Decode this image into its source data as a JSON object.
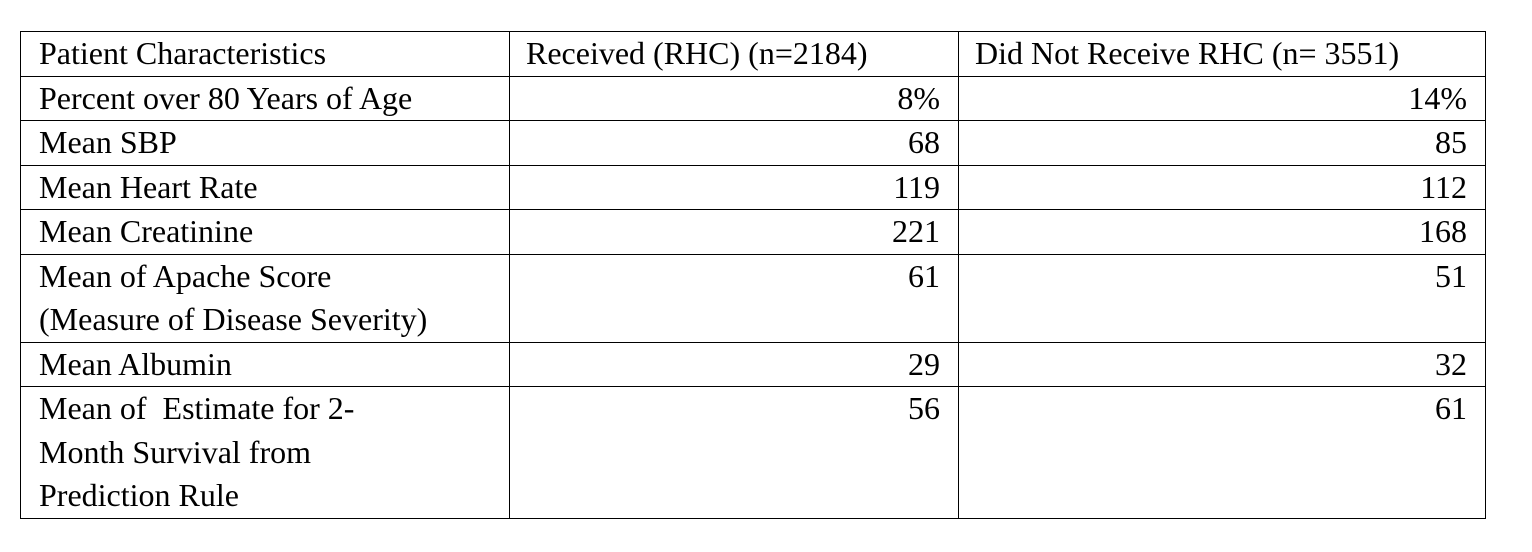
{
  "table": {
    "headers": [
      "Patient Characteristics",
      "Received (RHC) (n=2184)",
      "Did Not Receive RHC (n= 3551)"
    ],
    "rows": [
      {
        "characteristic": "Percent over 80 Years of Age",
        "received": "8%",
        "not_received": "14%"
      },
      {
        "characteristic": "Mean SBP",
        "received": "68",
        "not_received": "85"
      },
      {
        "characteristic": "Mean Heart Rate",
        "received": "119",
        "not_received": "112"
      },
      {
        "characteristic": "Mean Creatinine",
        "received": "221",
        "not_received": "168"
      },
      {
        "characteristic_lines": [
          "Mean of Apache Score",
          "(Measure of Disease Severity)"
        ],
        "received": "61",
        "not_received": "51"
      },
      {
        "characteristic": "Mean Albumin",
        "received": "29",
        "not_received": "32"
      },
      {
        "characteristic_lines": [
          "Mean of  Estimate for 2-",
          "Month Survival from",
          "Prediction Rule"
        ],
        "received": "56",
        "not_received": "61"
      }
    ]
  }
}
